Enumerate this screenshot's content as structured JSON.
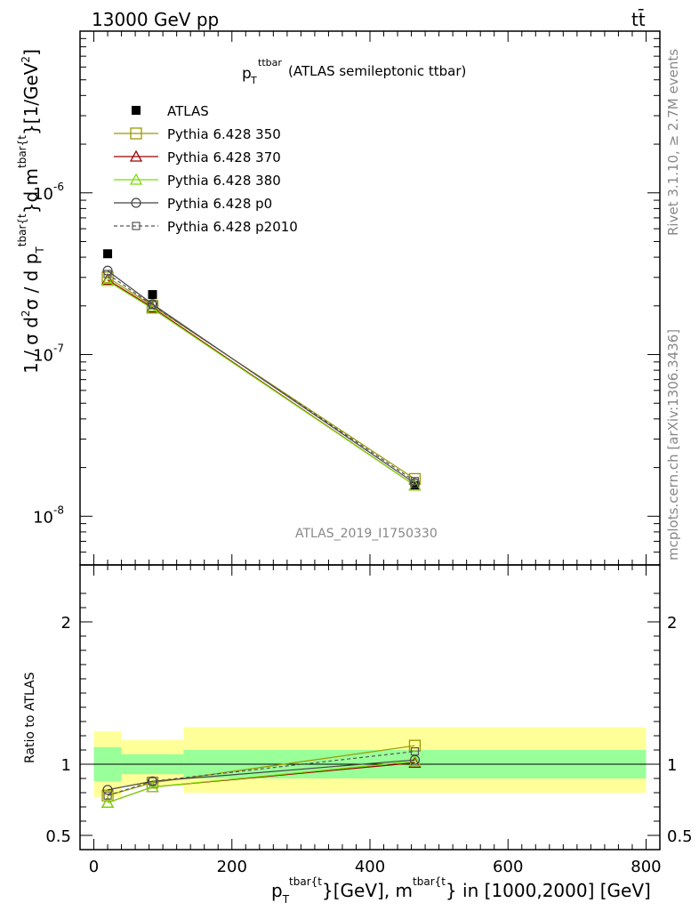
{
  "header": {
    "left": "13000 GeV pp",
    "right": "tt̄"
  },
  "title": {
    "main": "p",
    "sub": "T",
    "sup": "ttbar",
    "rest": " (ATLAS semileptonic ttbar)"
  },
  "watermark": "ATLAS_2019_I1750330",
  "side_text": {
    "rivet": "Rivet 3.1.10, ≥ 2.7M events",
    "mcplots": "mcplots.cern.ch [arXiv:1306.3436]"
  },
  "ylabel_main": {
    "a": "1 / σ d",
    "sup2": "2",
    "b": "σ / d p",
    "subT": "T",
    "sup_tb": "tbar{t",
    "c": "}d m",
    "sup_tb2": "tbar{t",
    "d": "}[1/GeV",
    "sup3": "2",
    "e": "]"
  },
  "ylabel_ratio": "Ratio to ATLAS",
  "xlabel": {
    "a": "p",
    "subT": "T",
    "sup_tb": "tbar{t",
    "b": "}[GeV], m",
    "sup_tb2": "tbar{t",
    "c": "} in [1000,2000] [GeV]"
  },
  "chart_data": [
    {
      "type": "line",
      "panel": "main",
      "y_scale": "log",
      "ylim": [
        5e-09,
        1e-05
      ],
      "xlim": [
        -20,
        820
      ],
      "y_tick_labels": [
        "10",
        "10",
        "10"
      ],
      "y_tick_exponents": [
        "-8",
        "-7",
        "-6"
      ],
      "y_tick_values": [
        1e-08,
        1e-07,
        1e-06
      ],
      "series": [
        {
          "name": "ATLAS",
          "style": "data",
          "color": "#000000",
          "marker": "filled-square",
          "x": [
            20,
            85,
            465
          ],
          "y": [
            4.2e-07,
            2.35e-07,
            1.55e-08
          ]
        },
        {
          "name": "Pythia 6.428 350",
          "color": "#999900",
          "marker": "open-square",
          "dash": false,
          "x": [
            20,
            85,
            465
          ],
          "y": [
            3e-07,
            2e-07,
            1.7e-08
          ]
        },
        {
          "name": "Pythia 6.428 370",
          "color": "#990000",
          "marker": "open-triangle",
          "dash": false,
          "x": [
            20,
            85,
            465
          ],
          "y": [
            2.9e-07,
            1.95e-07,
            1.55e-08
          ]
        },
        {
          "name": "Pythia 6.428 380",
          "color": "#77dd00",
          "marker": "open-triangle",
          "dash": false,
          "x": [
            20,
            85,
            465
          ],
          "y": [
            2.85e-07,
            1.92e-07,
            1.55e-08
          ]
        },
        {
          "name": "Pythia 6.428 p0",
          "color": "#444444",
          "marker": "open-circle",
          "dash": false,
          "x": [
            20,
            85,
            465
          ],
          "y": [
            3.3e-07,
            2.05e-07,
            1.6e-08
          ]
        },
        {
          "name": "Pythia 6.428 p2010",
          "color": "#555555",
          "marker": "open-square-small",
          "dash": true,
          "x": [
            20,
            85,
            465
          ],
          "y": [
            3.15e-07,
            2.02e-07,
            1.65e-08
          ]
        }
      ]
    },
    {
      "type": "line",
      "panel": "ratio",
      "ylim": [
        0.4,
        2.4
      ],
      "xlim": [
        -20,
        820
      ],
      "x_ticks": [
        0,
        200,
        400,
        600,
        800
      ],
      "y_ticks": [
        0.5,
        1,
        2
      ],
      "y_tick_labels": [
        "0.5",
        "1",
        "2"
      ],
      "bands": [
        {
          "x0": 0,
          "x1": 40,
          "inner": [
            0.88,
            1.12
          ],
          "outer": [
            0.77,
            1.23
          ]
        },
        {
          "x0": 40,
          "x1": 130,
          "inner": [
            0.93,
            1.07
          ],
          "outer": [
            0.85,
            1.17
          ]
        },
        {
          "x0": 130,
          "x1": 800,
          "inner": [
            0.9,
            1.1
          ],
          "outer": [
            0.8,
            1.26
          ]
        }
      ],
      "band_colors": {
        "inner": "#99ff99",
        "outer": "#ffff99"
      },
      "series": [
        {
          "name": "Pythia 6.428 350",
          "x": [
            20,
            85,
            465
          ],
          "y": [
            0.78,
            0.87,
            1.13
          ]
        },
        {
          "name": "Pythia 6.428 370",
          "x": [
            20,
            85,
            465
          ],
          "y": [
            0.73,
            0.84,
            1.01
          ]
        },
        {
          "name": "Pythia 6.428 380",
          "x": [
            20,
            85,
            465
          ],
          "y": [
            0.73,
            0.84,
            1.02
          ]
        },
        {
          "name": "Pythia 6.428 p0",
          "x": [
            20,
            85,
            465
          ],
          "y": [
            0.82,
            0.88,
            1.03
          ]
        },
        {
          "name": "Pythia 6.428 p2010",
          "x": [
            20,
            85,
            465
          ],
          "y": [
            0.78,
            0.88,
            1.09
          ]
        }
      ]
    }
  ]
}
